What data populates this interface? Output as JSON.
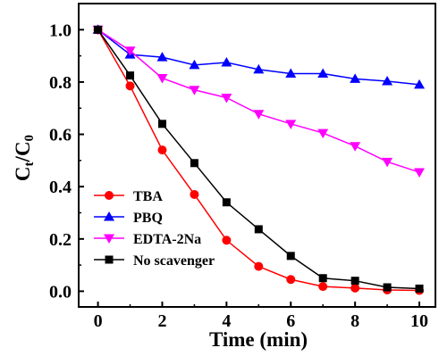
{
  "chart_data": {
    "type": "line",
    "xlabel": "Time (min)",
    "ylabel": "C",
    "ylabel_sub_t": "t",
    "ylabel_slash": "/C",
    "ylabel_sub_0": "0",
    "xlim": [
      -0.6,
      10.5
    ],
    "ylim": [
      -0.06,
      1.1
    ],
    "x_ticks": [
      0,
      2,
      4,
      6,
      8,
      10
    ],
    "x_tick_labels": [
      "0",
      "2",
      "4",
      "6",
      "8",
      "10"
    ],
    "y_ticks": [
      0.0,
      0.2,
      0.4,
      0.6,
      0.8,
      1.0
    ],
    "y_tick_labels": [
      "0.0",
      "0.2",
      "0.4",
      "0.6",
      "0.8",
      "1.0"
    ],
    "x": [
      0,
      1,
      2,
      3,
      4,
      5,
      6,
      7,
      8,
      9,
      10
    ],
    "legend_position": "bottom-left",
    "grid": false,
    "series": [
      {
        "name": "TBA",
        "color": "#ff0000",
        "marker": "circle",
        "values": [
          1.0,
          0.785,
          0.54,
          0.37,
          0.195,
          0.095,
          0.045,
          0.018,
          0.012,
          0.005,
          0.003
        ]
      },
      {
        "name": "PBQ",
        "color": "#0000ff",
        "marker": "triangle-up",
        "values": [
          1.0,
          0.905,
          0.895,
          0.865,
          0.875,
          0.848,
          0.832,
          0.832,
          0.812,
          0.803,
          0.79
        ]
      },
      {
        "name": "EDTA-2Na",
        "color": "#ff00ff",
        "marker": "triangle-down",
        "values": [
          1.0,
          0.92,
          0.815,
          0.77,
          0.74,
          0.678,
          0.64,
          0.605,
          0.555,
          0.495,
          0.455
        ]
      },
      {
        "name": "No scavenger",
        "color": "#000000",
        "marker": "square",
        "values": [
          1.0,
          0.825,
          0.64,
          0.49,
          0.34,
          0.237,
          0.135,
          0.05,
          0.04,
          0.015,
          0.01
        ]
      }
    ]
  }
}
